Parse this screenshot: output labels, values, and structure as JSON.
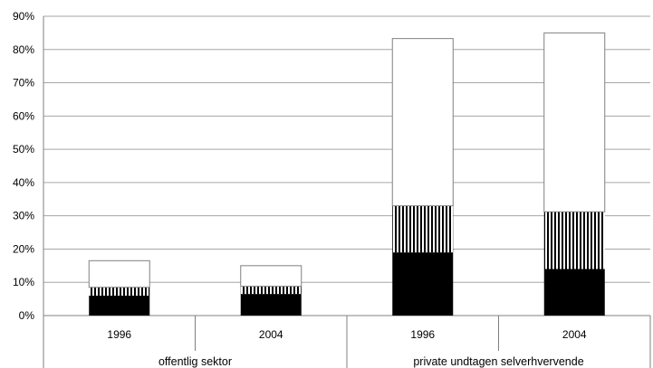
{
  "chart_data": {
    "type": "bar",
    "stacked": true,
    "y_axis": {
      "min": 0,
      "max": 90,
      "step": 10,
      "tick_labels": [
        "0%",
        "10%",
        "20%",
        "30%",
        "40%",
        "50%",
        "60%",
        "70%",
        "80%",
        "90%"
      ]
    },
    "grid": true,
    "groups": [
      {
        "label": "offentlig sektor",
        "categories": [
          "1996",
          "2004"
        ]
      },
      {
        "label": "private undtagen selverhvervende",
        "categories": [
          "1996",
          "2004"
        ]
      }
    ],
    "categories": [
      "1996",
      "2004",
      "1996",
      "2004"
    ],
    "series": [
      {
        "fill": "#000000",
        "pattern": "solid",
        "values": [
          6,
          6.5,
          19,
          14
        ]
      },
      {
        "fill": "#000000",
        "pattern": "vertical-stripes",
        "values": [
          2.5,
          2.3,
          14,
          17.2
        ]
      },
      {
        "fill": "#ffffff",
        "pattern": "white",
        "values": [
          8,
          6.2,
          50.3,
          53.8
        ]
      }
    ]
  }
}
